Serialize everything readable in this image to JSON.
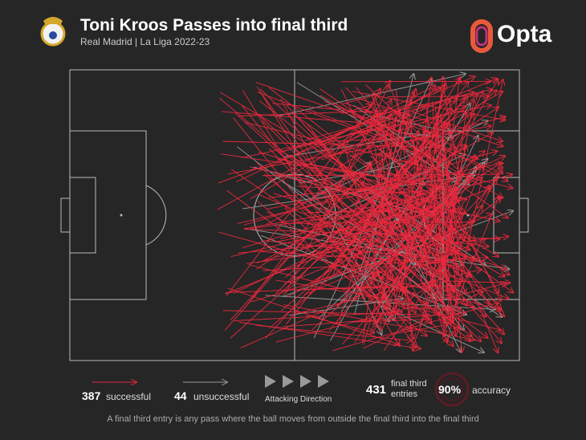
{
  "header": {
    "title": "Toni Kroos Passes into final third",
    "subtitle": "Real Madrid | La Liga 2022-23",
    "brand": "Opta"
  },
  "legend": {
    "successful": {
      "count": "387",
      "label": "successful"
    },
    "unsuccessful": {
      "count": "44",
      "label": "unsuccessful"
    },
    "direction": "Attacking Direction"
  },
  "stats": {
    "entries": {
      "count": "431",
      "label": "final third entries"
    },
    "accuracy": {
      "count": "90%",
      "label": "accuracy"
    }
  },
  "footnote": "A final third entry is any pass where the ball moves from outside the final third into the final third"
}
